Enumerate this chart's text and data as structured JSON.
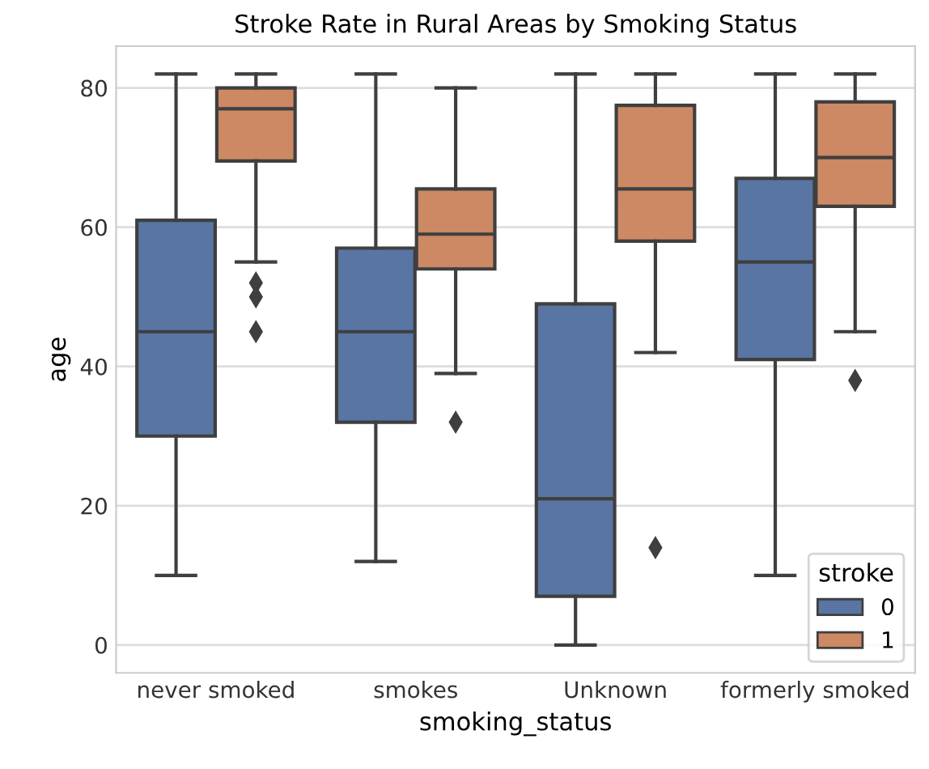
{
  "chart_data": {
    "type": "box",
    "title": "Stroke Rate in Rural Areas by Smoking Status",
    "xlabel": "smoking_status",
    "ylabel": "age",
    "categories": [
      "never smoked",
      "smokes",
      "Unknown",
      "formerly smoked"
    ],
    "series": [
      {
        "name": "0",
        "color": "#5875a4",
        "boxes": [
          {
            "low": 10,
            "q1": 30,
            "median": 45,
            "q3": 61,
            "high": 82
          },
          {
            "low": 12,
            "q1": 32,
            "median": 45,
            "q3": 57,
            "high": 82
          },
          {
            "low": 0,
            "q1": 7,
            "median": 21,
            "q3": 49,
            "high": 82
          },
          {
            "low": 10,
            "q1": 41,
            "median": 55,
            "q3": 67,
            "high": 82
          }
        ]
      },
      {
        "name": "1",
        "color": "#cc8963",
        "boxes": [
          {
            "low": 55,
            "q1": 69.5,
            "median": 77,
            "q3": 80,
            "high": 82,
            "outliers": [
              52,
              50,
              45
            ]
          },
          {
            "low": 39,
            "q1": 54,
            "median": 59,
            "q3": 65.5,
            "high": 80,
            "outliers": [
              32
            ]
          },
          {
            "low": 42,
            "q1": 58,
            "median": 65.5,
            "q3": 77.5,
            "high": 82,
            "outliers": [
              14
            ]
          },
          {
            "low": 45,
            "q1": 63,
            "median": 70,
            "q3": 78,
            "high": 82,
            "outliers": [
              38
            ]
          }
        ]
      }
    ],
    "ylim": [
      -4,
      86
    ],
    "yticks": [
      0,
      20,
      40,
      60,
      80
    ],
    "grid": "y",
    "legend": "bottom right",
    "legend_title": "stroke",
    "marker": "diamond"
  }
}
